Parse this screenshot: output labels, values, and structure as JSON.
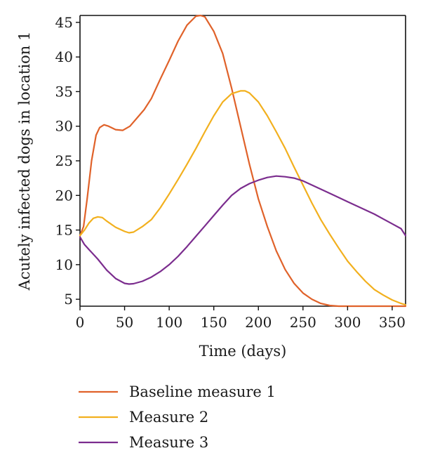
{
  "chart_data": {
    "type": "line",
    "title": "",
    "xlabel": "Time (days)",
    "ylabel": "Acutely infected dogs in location 1",
    "xlim": [
      0,
      365
    ],
    "ylim": [
      4,
      46
    ],
    "xticks": [
      0,
      50,
      100,
      150,
      200,
      250,
      300,
      350
    ],
    "yticks": [
      5,
      10,
      15,
      20,
      25,
      30,
      35,
      40,
      45
    ],
    "grid": false,
    "legend_position": "bottom",
    "series": [
      {
        "name": "Baseline measure 1",
        "color": "#e0622a",
        "x": [
          0,
          4,
          8,
          13,
          18,
          22,
          27,
          32,
          40,
          48,
          56,
          64,
          72,
          80,
          90,
          100,
          110,
          120,
          130,
          135,
          140,
          150,
          160,
          170,
          180,
          190,
          200,
          210,
          220,
          230,
          240,
          250,
          260,
          270,
          280,
          290,
          300,
          310,
          320,
          330,
          340,
          350,
          360,
          365
        ],
        "y": [
          14.2,
          15.5,
          19.5,
          25,
          28.7,
          29.8,
          30.2,
          30.0,
          29.5,
          29.4,
          30.0,
          31.2,
          32.4,
          34.0,
          36.8,
          39.5,
          42.3,
          44.6,
          45.9,
          46.0,
          45.8,
          43.7,
          40.5,
          35.5,
          30.0,
          24.5,
          19.5,
          15.5,
          12.0,
          9.3,
          7.3,
          5.9,
          5.0,
          4.4,
          4.1,
          3.9,
          3.8,
          3.75,
          3.75,
          3.8,
          3.85,
          3.9,
          4.0,
          4.0
        ]
      },
      {
        "name": "Measure 2",
        "color": "#f2b01e",
        "x": [
          0,
          5,
          10,
          15,
          20,
          25,
          30,
          40,
          50,
          55,
          60,
          70,
          80,
          90,
          100,
          110,
          120,
          130,
          140,
          150,
          160,
          170,
          180,
          185,
          190,
          200,
          210,
          220,
          230,
          240,
          250,
          260,
          270,
          280,
          290,
          300,
          310,
          320,
          330,
          340,
          350,
          360,
          365
        ],
        "y": [
          14.2,
          15.0,
          16.0,
          16.7,
          16.9,
          16.8,
          16.3,
          15.4,
          14.8,
          14.6,
          14.7,
          15.5,
          16.5,
          18.2,
          20.2,
          22.3,
          24.5,
          26.8,
          29.2,
          31.5,
          33.5,
          34.7,
          35.1,
          35.1,
          34.8,
          33.5,
          31.5,
          29.2,
          26.8,
          24.1,
          21.5,
          18.9,
          16.5,
          14.4,
          12.4,
          10.5,
          9.0,
          7.6,
          6.4,
          5.6,
          4.9,
          4.4,
          4.2
        ]
      },
      {
        "name": "Measure 3",
        "color": "#7b2d8e",
        "x": [
          0,
          5,
          10,
          20,
          30,
          40,
          50,
          55,
          60,
          70,
          80,
          90,
          100,
          110,
          120,
          130,
          140,
          150,
          160,
          170,
          180,
          190,
          200,
          210,
          220,
          230,
          240,
          250,
          260,
          270,
          280,
          290,
          300,
          310,
          320,
          330,
          340,
          350,
          360,
          365
        ],
        "y": [
          14.0,
          12.9,
          12.2,
          10.8,
          9.2,
          8.0,
          7.3,
          7.2,
          7.25,
          7.6,
          8.2,
          9.0,
          10.0,
          11.2,
          12.6,
          14.1,
          15.6,
          17.1,
          18.6,
          20.0,
          21.0,
          21.7,
          22.2,
          22.6,
          22.8,
          22.7,
          22.5,
          22.1,
          21.5,
          20.9,
          20.3,
          19.7,
          19.1,
          18.5,
          17.9,
          17.3,
          16.6,
          15.9,
          15.2,
          14.2
        ]
      }
    ]
  }
}
